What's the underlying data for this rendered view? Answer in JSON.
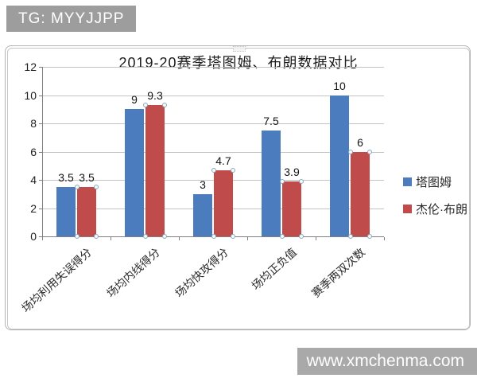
{
  "overlays": {
    "tg_badge": "TG: MYYJJPP",
    "watermark": "www.xmchenma.com"
  },
  "chart_data": {
    "type": "bar",
    "title": "2019-20赛季塔图姆、布朗数据对比",
    "categories": [
      "场均利用失误得分",
      "场均内线得分",
      "场均快攻得分",
      "场均正负值",
      "赛季两双次数"
    ],
    "series": [
      {
        "name": "塔图姆",
        "color": "#4b7cbe",
        "values": [
          3.5,
          9,
          3,
          7.5,
          10
        ],
        "selected": false
      },
      {
        "name": "杰伦·布朗",
        "color": "#bf4b4a",
        "values": [
          3.5,
          9.3,
          4.7,
          3.9,
          6
        ],
        "selected": true
      }
    ],
    "data_labels": [
      [
        "3.5",
        "9",
        "3",
        "7.5",
        "10"
      ],
      [
        "3.5",
        "9.3",
        "4.7",
        "3.9",
        "6"
      ]
    ],
    "ylim": [
      0,
      12
    ],
    "yticks": [
      0,
      2,
      4,
      6,
      8,
      10,
      12
    ],
    "grid": true,
    "legend_position": "right"
  },
  "colors": {
    "bar_blue": "#4b7cbe",
    "bar_red": "#bf4b4a",
    "gridline": "#c3c3c3",
    "axis": "#808080",
    "badge_bg": "#9d9d9d",
    "watermark_bg": "#a9a9a9",
    "text": "#1c1c1c"
  }
}
